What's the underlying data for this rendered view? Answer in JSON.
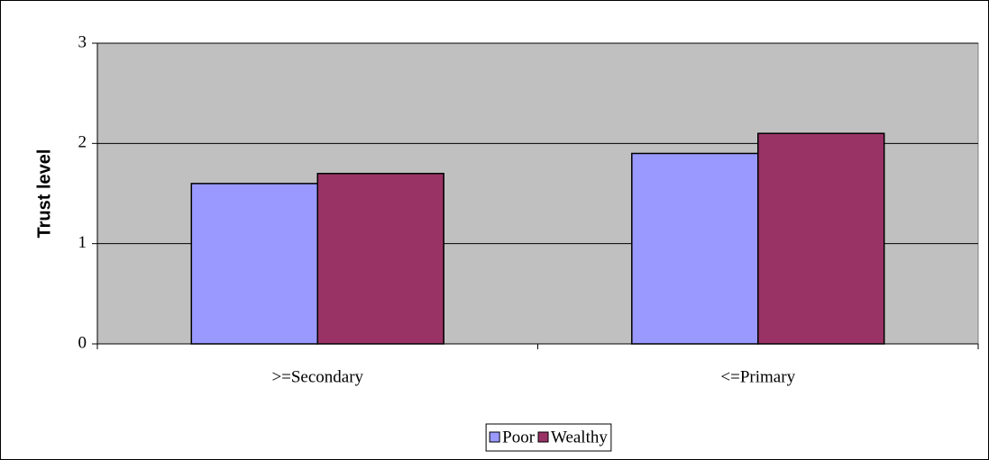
{
  "chart_data": {
    "type": "bar",
    "y_label": "Trust level",
    "categories": [
      ">=Secondary",
      "<=Primary"
    ],
    "series": [
      {
        "name": "Poor",
        "color": "#9999ff",
        "values": [
          1.6,
          1.9
        ]
      },
      {
        "name": "Wealthy",
        "color": "#993366",
        "values": [
          1.7,
          2.1
        ]
      }
    ],
    "ylim": [
      0,
      3
    ],
    "yticks": [
      0,
      1,
      2,
      3
    ],
    "grid": true,
    "legend": "bottom"
  }
}
